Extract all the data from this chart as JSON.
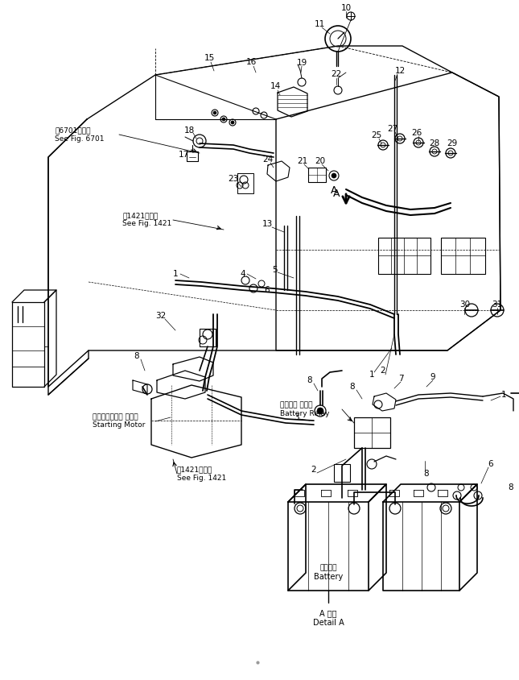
{
  "bg_color": "#ffffff",
  "line_color": "#000000",
  "fig_width": 6.45,
  "fig_height": 8.44,
  "dpi": 100,
  "labels": {
    "see_fig_6701_jp": "第6701図参照",
    "see_fig_6701_en": "See Fig. 6701",
    "see_fig_1421_jp1": "第1421図参照",
    "see_fig_1421_en1": "See Fig. 1421",
    "starting_motor_jp": "スターティング モータ",
    "starting_motor_en": "Starting Motor",
    "see_fig_1421_jp2": "第1421図参照",
    "see_fig_1421_en2": "See Fig. 1421",
    "battery_relay_jp": "バッテリ リレー",
    "battery_relay_en": "Battery Relay",
    "battery_jp": "バッテリ",
    "battery_en": "Battery",
    "detail_a_jp": "A 詳細",
    "detail_a_en": "Detail A",
    "A_label": "A"
  }
}
